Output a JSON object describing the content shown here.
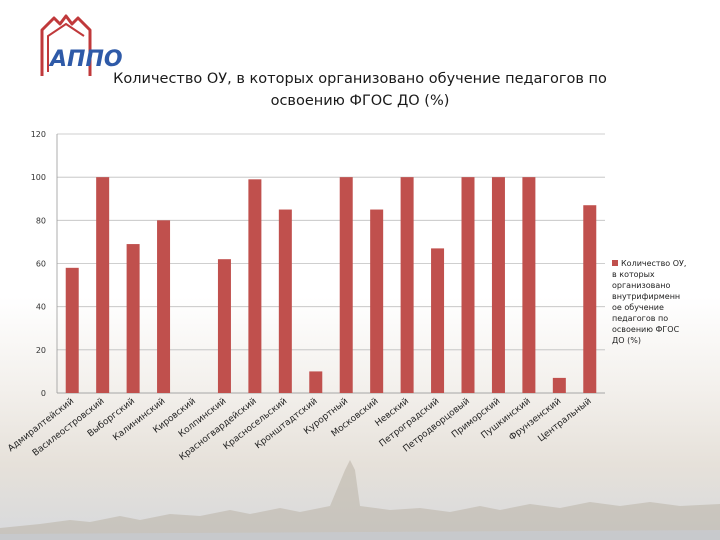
{
  "slide": {
    "title": "Количество ОУ, в которых организовано  обучение педагогов по освоению ФГОС ДО (%)",
    "logo_text": "АППО"
  },
  "chart_data": {
    "type": "bar",
    "title": "Количество ОУ, в которых организовано  обучение педагогов по освоению ФГОС ДО (%)",
    "categories": [
      "Адмиралтейский",
      "Василеостровский",
      "Выборгский",
      "Калининский",
      "Кировский",
      "Колпинский",
      "Красногвардейский",
      "Красносельский",
      "Кронштадтский",
      "Курортный",
      "Московский",
      "Невский",
      "Петроградский",
      "Петродворцовый",
      "Приморский",
      "Пушкинский",
      "Фрунзенский",
      "Центральный"
    ],
    "series": [
      {
        "name": "Количество ОУ, в которых организовано внутрифирменное обучение педагогов по освоению ФГОС ДО (%)",
        "values": [
          58,
          100,
          69,
          80,
          0,
          62,
          99,
          85,
          10,
          100,
          85,
          100,
          67,
          100,
          100,
          100,
          7,
          87
        ],
        "color": "#c0504d"
      }
    ],
    "ylim": [
      0,
      120
    ],
    "yticks": [
      0,
      20,
      40,
      60,
      80,
      100,
      120
    ],
    "grid": true,
    "legend_position": "right",
    "legend_lines": [
      "Количество ОУ,",
      "в которых",
      "организовано",
      "внутрифирменн",
      "ое обучение",
      "педагогов по",
      "освоению ФГОС",
      "ДО (%)"
    ]
  }
}
